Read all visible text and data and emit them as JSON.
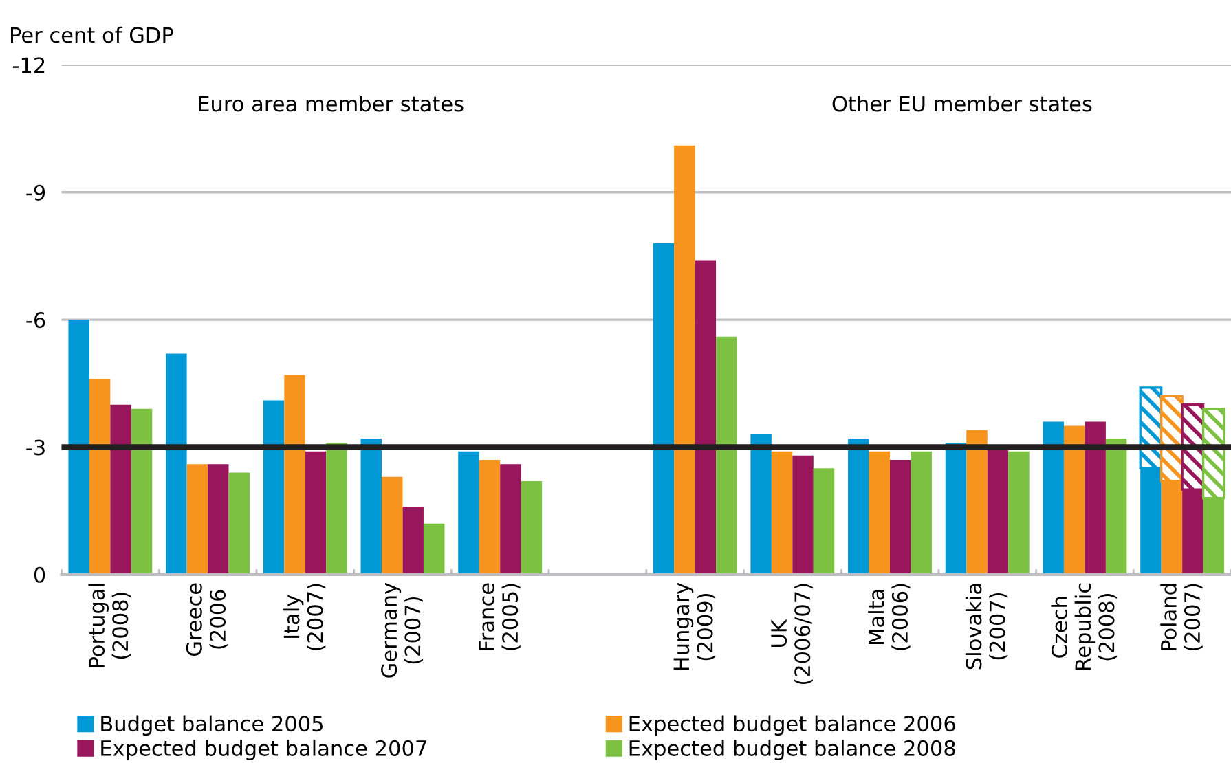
{
  "chart_data": {
    "type": "bar",
    "ylabel": "Per cent of GDP",
    "categories": [
      "Portugal\n(2008)",
      "Greece\n(2006",
      "Italy\n(2007)",
      "Germany\n(2007)",
      "France\n(2005)",
      null,
      "Hungary\n(2009)",
      "UK\n(2006/07)",
      "Malta\n(2006)",
      "Slovakia\n(2007)",
      "Czech\nRepublic\n(2008)",
      "Poland\n(2007)"
    ],
    "series": [
      {
        "name": "Budget balance 2005",
        "color": "#0099d6",
        "values": [
          -6.0,
          -5.2,
          -4.1,
          -3.2,
          -2.9,
          null,
          -7.8,
          -3.3,
          -3.2,
          -3.1,
          -3.6,
          -2.5
        ]
      },
      {
        "name": "Expected budget balance 2006",
        "color": "#f7941d",
        "values": [
          -4.6,
          -2.6,
          -4.7,
          -2.3,
          -2.7,
          null,
          -10.1,
          -2.9,
          -2.9,
          -3.4,
          -3.5,
          -2.2
        ]
      },
      {
        "name": "Expected budget balance 2007",
        "color": "#99165c",
        "values": [
          -4.0,
          -2.6,
          -2.9,
          -1.6,
          -2.6,
          null,
          -7.4,
          -2.8,
          -2.7,
          -3.0,
          -3.6,
          -2.0
        ]
      },
      {
        "name": "Expected budget balance 2008",
        "color": "#7dc142",
        "values": [
          -3.9,
          -2.4,
          -3.1,
          -1.2,
          -2.2,
          null,
          -5.6,
          -2.5,
          -2.9,
          -2.9,
          -3.2,
          -1.8
        ]
      },
      {
        "color": "#0099d6",
        "values": [
          null,
          null,
          null,
          null,
          null,
          null,
          null,
          null,
          null,
          null,
          null,
          -1.9
        ],
        "base": [
          null,
          null,
          null,
          null,
          null,
          null,
          null,
          null,
          null,
          null,
          null,
          -2.5
        ]
      },
      {
        "color": "#f7941d",
        "values": [
          null,
          null,
          null,
          null,
          null,
          null,
          null,
          null,
          null,
          null,
          null,
          -2.0
        ],
        "base": [
          null,
          null,
          null,
          null,
          null,
          null,
          null,
          null,
          null,
          null,
          null,
          -2.2
        ]
      },
      {
        "color": "#99165c",
        "values": [
          null,
          null,
          null,
          null,
          null,
          null,
          null,
          null,
          null,
          null,
          null,
          -2.0
        ],
        "base": [
          null,
          null,
          null,
          null,
          null,
          null,
          null,
          null,
          null,
          null,
          null,
          -2.0
        ]
      },
      {
        "color": "#7dc142",
        "values": [
          null,
          null,
          null,
          null,
          null,
          null,
          null,
          null,
          null,
          null,
          null,
          -2.1
        ],
        "base": [
          null,
          null,
          null,
          null,
          null,
          null,
          null,
          null,
          null,
          null,
          null,
          -1.8
        ]
      }
    ],
    "ylim": [
      0,
      -12
    ],
    "yticks": [
      0,
      -3,
      -6,
      -9,
      -12
    ],
    "grid": "y",
    "legend": "bottom",
    "ref_lines": [
      {
        "axis": "y",
        "value": -3,
        "color": "#231f20"
      }
    ],
    "annotations": [
      "Euro area member states",
      "Other EU member states"
    ]
  }
}
